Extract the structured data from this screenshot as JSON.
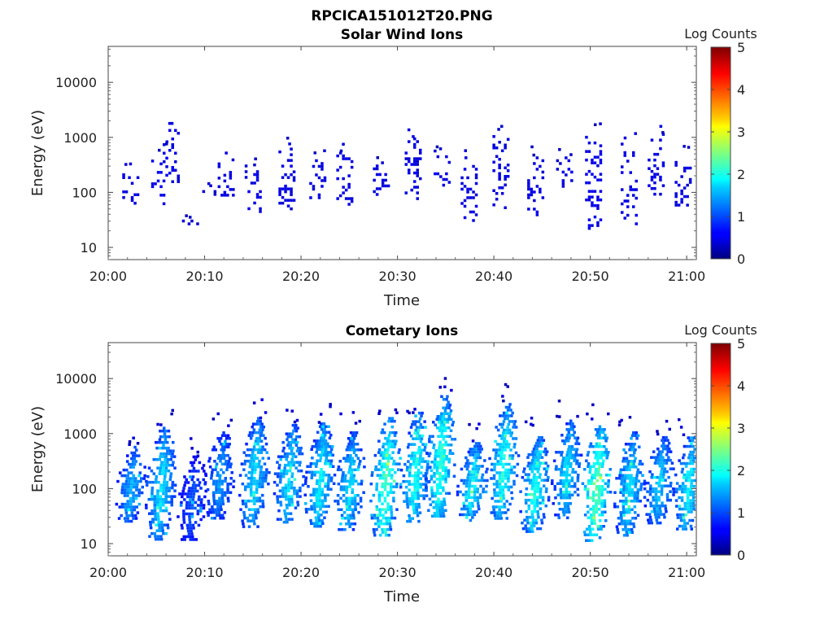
{
  "figure_title": "RPCICA151012T20.PNG",
  "chart_data": [
    {
      "type": "heatmap",
      "title": "Solar Wind Ions",
      "xlabel": "Time",
      "ylabel": "Energy (eV)",
      "yscale": "log",
      "xlim": [
        "20:00",
        "21:01"
      ],
      "ylim": [
        6,
        45000
      ],
      "xticks": [
        "20:00",
        "20:10",
        "20:20",
        "20:30",
        "20:40",
        "20:50",
        "21:00"
      ],
      "yticks": [
        "10",
        "100",
        "1000",
        "10000"
      ],
      "colorbar": {
        "label": "Log Counts",
        "range": [
          0,
          5
        ],
        "ticks": [
          "0",
          "1",
          "2",
          "3",
          "4",
          "5"
        ],
        "colormap": "jet"
      },
      "bursts": [
        {
          "t": 2.3,
          "e_low": 60,
          "e_high": 250,
          "level": 0.3
        },
        {
          "t": 5.3,
          "e_low": 60,
          "e_high": 500,
          "level": 0.4
        },
        {
          "t": 6.5,
          "e_low": 150,
          "e_high": 1800,
          "level": 0.3
        },
        {
          "t": 8.5,
          "e_low": 28,
          "e_high": 32,
          "level": 0.2
        },
        {
          "t": 10.3,
          "e_low": 95,
          "e_high": 110,
          "level": 0.2
        },
        {
          "t": 12.2,
          "e_low": 90,
          "e_high": 350,
          "level": 0.3
        },
        {
          "t": 15.0,
          "e_low": 45,
          "e_high": 320,
          "level": 0.3
        },
        {
          "t": 18.5,
          "e_low": 50,
          "e_high": 650,
          "level": 0.3
        },
        {
          "t": 21.7,
          "e_low": 70,
          "e_high": 450,
          "level": 0.3
        },
        {
          "t": 24.5,
          "e_low": 40,
          "e_high": 550,
          "level": 0.3
        },
        {
          "t": 28.3,
          "e_low": 90,
          "e_high": 320,
          "level": 0.3
        },
        {
          "t": 31.6,
          "e_low": 80,
          "e_high": 1000,
          "level": 0.3
        },
        {
          "t": 34.6,
          "e_low": 80,
          "e_high": 600,
          "level": 0.3
        },
        {
          "t": 37.4,
          "e_low": 30,
          "e_high": 400,
          "level": 0.3
        },
        {
          "t": 40.7,
          "e_low": 40,
          "e_high": 1100,
          "level": 0.3
        },
        {
          "t": 44.3,
          "e_low": 40,
          "e_high": 450,
          "level": 0.3
        },
        {
          "t": 47.3,
          "e_low": 130,
          "e_high": 450,
          "level": 0.3
        },
        {
          "t": 50.3,
          "e_low": 18,
          "e_high": 1200,
          "level": 0.35
        },
        {
          "t": 54.0,
          "e_low": 24,
          "e_high": 800,
          "level": 0.3
        },
        {
          "t": 56.8,
          "e_low": 90,
          "e_high": 1200,
          "level": 0.3
        },
        {
          "t": 59.6,
          "e_low": 45,
          "e_high": 600,
          "level": 0.3
        }
      ]
    },
    {
      "type": "heatmap",
      "title": "Cometary Ions",
      "xlabel": "Time",
      "ylabel": "Energy (eV)",
      "yscale": "log",
      "xlim": [
        "20:00",
        "21:01"
      ],
      "ylim": [
        6,
        45000
      ],
      "xticks": [
        "20:00",
        "20:10",
        "20:20",
        "20:30",
        "20:40",
        "20:50",
        "21:00"
      ],
      "yticks": [
        "10",
        "100",
        "1000",
        "10000"
      ],
      "colorbar": {
        "label": "Log Counts",
        "range": [
          0,
          5
        ],
        "ticks": [
          "0",
          "1",
          "2",
          "3",
          "4",
          "5"
        ],
        "colormap": "jet"
      },
      "bursts": [
        {
          "t": 2.3,
          "e_low": 25,
          "e_high": 600,
          "level": 1.1
        },
        {
          "t": 5.4,
          "e_low": 12,
          "e_high": 1500,
          "level": 1.3
        },
        {
          "t": 8.7,
          "e_low": 12,
          "e_high": 400,
          "level": 0.7
        },
        {
          "t": 11.5,
          "e_low": 30,
          "e_high": 1100,
          "level": 1.0
        },
        {
          "t": 15.1,
          "e_low": 20,
          "e_high": 2000,
          "level": 1.3
        },
        {
          "t": 18.7,
          "e_low": 25,
          "e_high": 1500,
          "level": 1.3
        },
        {
          "t": 21.9,
          "e_low": 20,
          "e_high": 1600,
          "level": 1.4
        },
        {
          "t": 25.0,
          "e_low": 18,
          "e_high": 1100,
          "level": 1.3
        },
        {
          "t": 28.7,
          "e_low": 14,
          "e_high": 2000,
          "level": 1.7
        },
        {
          "t": 31.8,
          "e_low": 25,
          "e_high": 2500,
          "level": 1.5
        },
        {
          "t": 34.4,
          "e_low": 30,
          "e_high": 5000,
          "level": 1.6
        },
        {
          "t": 37.7,
          "e_low": 28,
          "e_high": 700,
          "level": 1.4
        },
        {
          "t": 40.9,
          "e_low": 30,
          "e_high": 3600,
          "level": 1.5
        },
        {
          "t": 44.2,
          "e_low": 16,
          "e_high": 900,
          "level": 1.5
        },
        {
          "t": 47.5,
          "e_low": 30,
          "e_high": 1800,
          "level": 1.3
        },
        {
          "t": 50.6,
          "e_low": 12,
          "e_high": 1600,
          "level": 1.8
        },
        {
          "t": 54.0,
          "e_low": 14,
          "e_high": 1100,
          "level": 1.3
        },
        {
          "t": 57.1,
          "e_low": 25,
          "e_high": 900,
          "level": 1.2
        },
        {
          "t": 60.1,
          "e_low": 18,
          "e_high": 1000,
          "level": 1.4
        }
      ]
    }
  ]
}
